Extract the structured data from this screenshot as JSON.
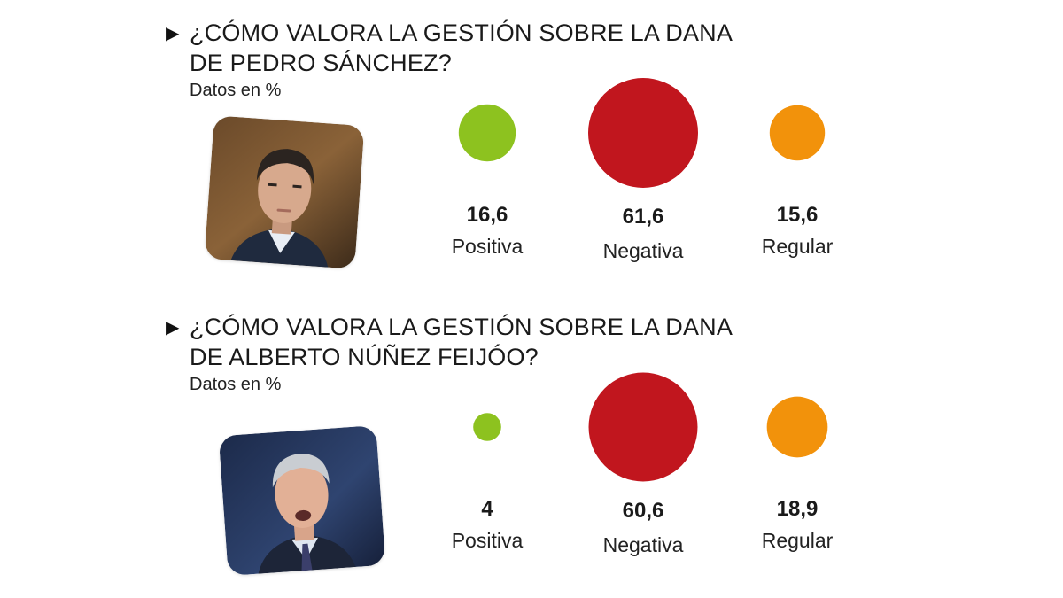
{
  "legend_marker": "▶",
  "colors": {
    "Positiva": "#8dc21f",
    "Negativa": "#c1161e",
    "Regular": "#f2920b"
  },
  "chart_data": [
    {
      "type": "bubble",
      "title_line1": "¿CÓMO VALORA LA GESTIÓN SOBRE LA DANA",
      "title_line2": "DE PEDRO SÁNCHEZ?",
      "subtitle": "Datos en %",
      "photo": "pedro-sanchez-photo",
      "categories": [
        "Positiva",
        "Negativa",
        "Regular"
      ],
      "values": [
        16.6,
        61.6,
        15.6
      ],
      "value_labels": [
        "16,6",
        "61,6",
        "15,6"
      ]
    },
    {
      "type": "bubble",
      "title_line1": "¿CÓMO VALORA LA GESTIÓN SOBRE LA DANA",
      "title_line2": "DE ALBERTO NÚÑEZ FEIJÓO?",
      "subtitle": "Datos en %",
      "photo": "alberto-nunez-feijoo-photo",
      "categories": [
        "Positiva",
        "Negativa",
        "Regular"
      ],
      "values": [
        4,
        60.6,
        18.9
      ],
      "value_labels": [
        "4",
        "60,6",
        "18,9"
      ]
    }
  ]
}
